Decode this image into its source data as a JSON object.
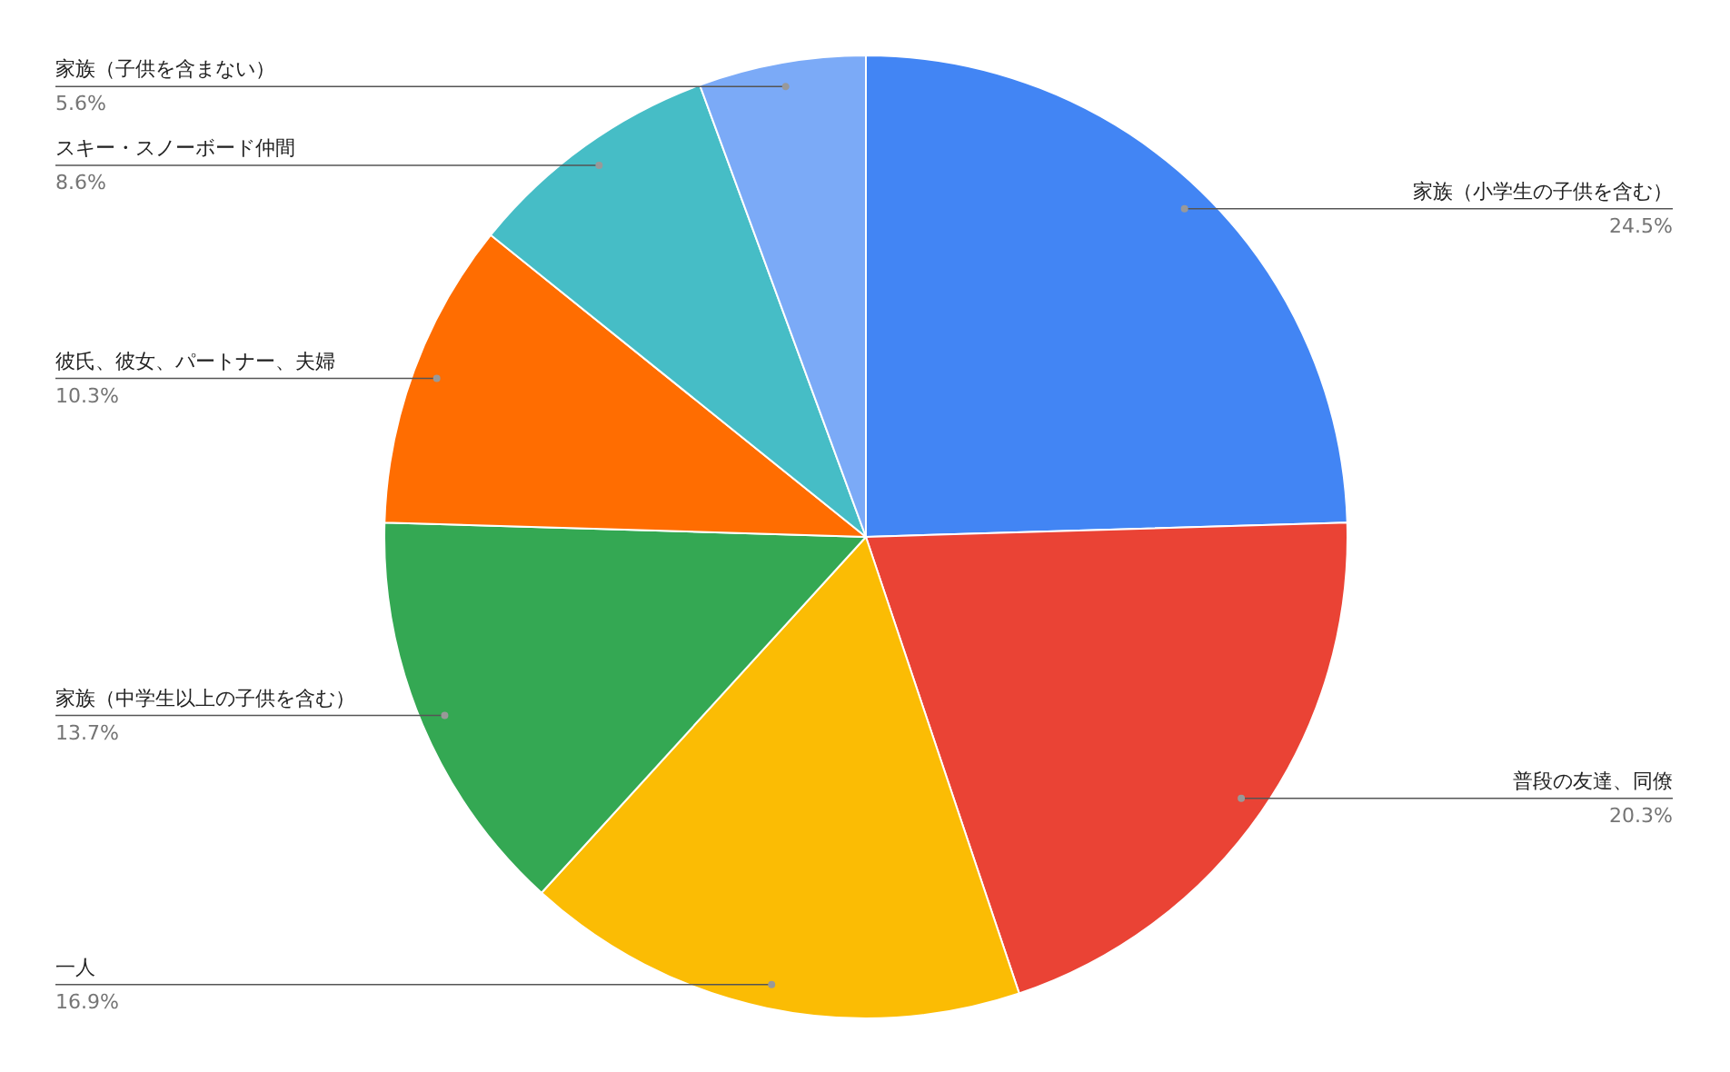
{
  "chart_data": {
    "type": "pie",
    "categories": [
      "家族（小学生の子供を含む）",
      "普段の友達、同僚",
      "一人",
      "家族（中学生以上の子供を含む）",
      "彼氏、彼女、パートナー、夫婦",
      "スキー・スノーボード仲間",
      "家族（子供を含まない）"
    ],
    "values": [
      24.5,
      20.3,
      16.9,
      13.7,
      10.3,
      8.6,
      5.6
    ],
    "value_labels": [
      "24.5%",
      "20.3%",
      "16.9%",
      "13.7%",
      "10.3%",
      "8.6%",
      "5.6%"
    ],
    "colors": [
      "#4285f4",
      "#ea4335",
      "#fbbc04",
      "#34a853",
      "#ff6d01",
      "#46bdc6",
      "#7baaf7"
    ]
  }
}
